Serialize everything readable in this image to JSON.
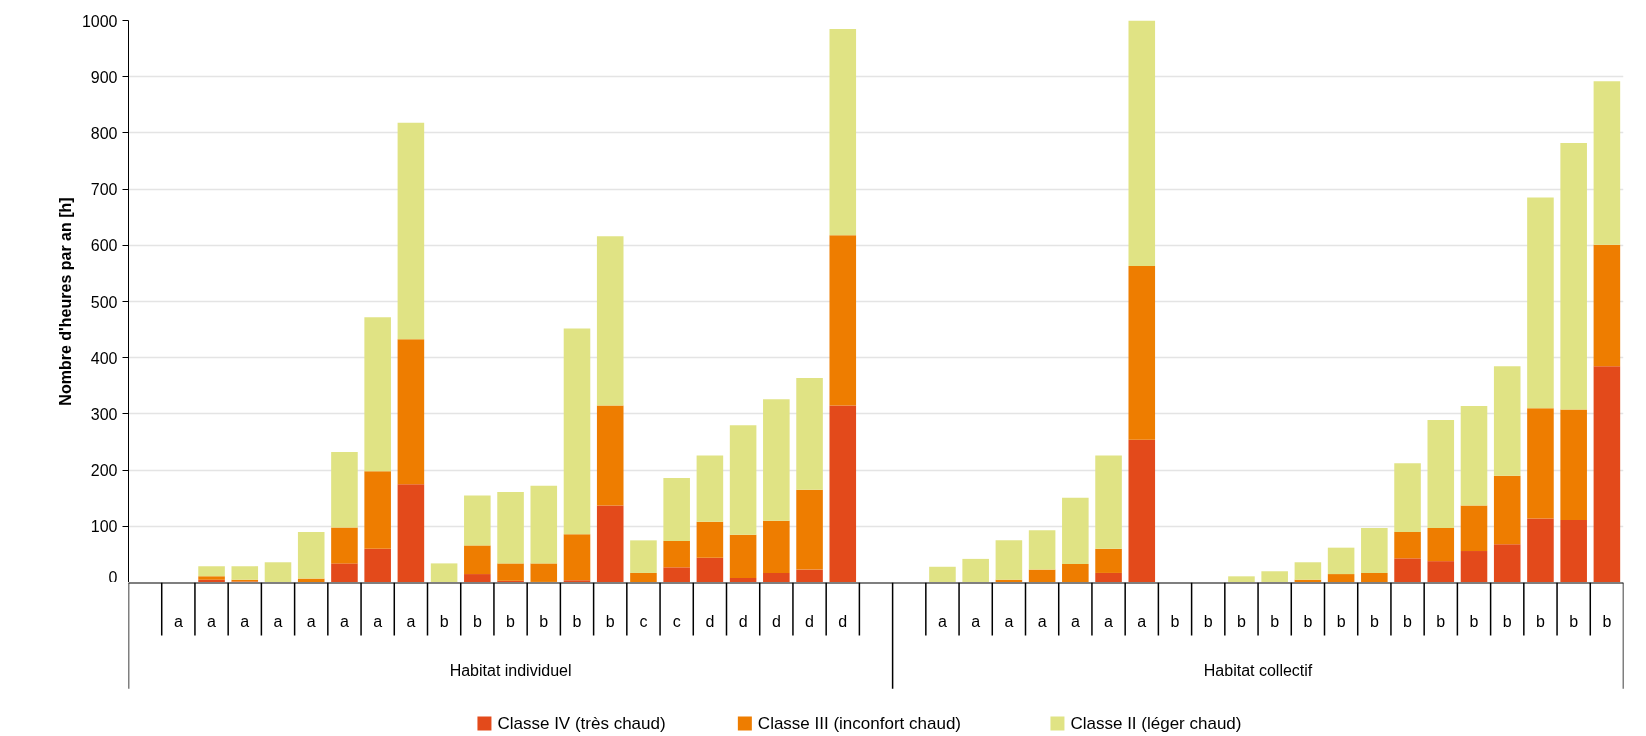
{
  "chart_data": {
    "type": "bar",
    "stacked": true,
    "ylabel": "Nombre d'heures par an [h]",
    "categories": [
      null,
      "a",
      "a",
      "a",
      "a",
      "a",
      "a",
      "a",
      "a",
      "b",
      "b",
      "b",
      "b",
      "b",
      "b",
      "c",
      "c",
      "d",
      "d",
      "d",
      "d",
      "d",
      null,
      null,
      "a",
      "a",
      "a",
      "a",
      "a",
      "a",
      "a",
      "b",
      "b",
      "b",
      "b",
      "b",
      "b",
      "b",
      "b",
      "b",
      "b",
      "b",
      "b",
      "b",
      "b"
    ],
    "annotations": [
      "Habitat individuel",
      "Habitat collectif"
    ],
    "series": [
      {
        "name": "Classe IV (très chaud)",
        "color": "#e34a1b",
        "values": [
          0,
          0,
          5,
          2,
          0,
          0,
          34,
          60,
          175,
          0,
          15,
          3,
          1,
          4,
          137,
          0,
          27,
          44,
          8,
          17,
          23,
          315,
          0,
          0,
          0,
          0,
          0,
          0,
          0,
          17,
          254,
          0,
          0,
          0,
          0,
          0,
          0,
          0,
          43,
          38,
          56,
          68,
          114,
          111,
          385
        ]
      },
      {
        "name": "Classe III (inconfort chaud)",
        "color": "#ee7d00",
        "values": [
          0,
          0,
          6,
          3,
          0,
          7,
          64,
          138,
          258,
          0,
          51,
          31,
          33,
          82,
          178,
          17,
          47,
          64,
          77,
          93,
          142,
          303,
          0,
          0,
          0,
          0,
          5,
          23,
          33,
          43,
          309,
          0,
          0,
          0,
          0,
          5,
          15,
          17,
          47,
          59,
          81,
          122,
          196,
          197,
          216
        ]
      },
      {
        "name": "Classe II (léger chaud)",
        "color": "#e0e384",
        "values": [
          0,
          0,
          18,
          24,
          36,
          83,
          134,
          274,
          385,
          34,
          89,
          127,
          138,
          366,
          301,
          58,
          112,
          118,
          195,
          216,
          199,
          367,
          0,
          0,
          28,
          42,
          70,
          70,
          118,
          166,
          437,
          0,
          0,
          11,
          20,
          31,
          47,
          80,
          122,
          192,
          177,
          195,
          375,
          474,
          291
        ]
      }
    ],
    "ylim": [
      0,
      1000
    ],
    "yticks": [
      0,
      100,
      200,
      300,
      400,
      500,
      600,
      700,
      800,
      900,
      1000
    ],
    "grid": "y",
    "legend": "bottom"
  }
}
